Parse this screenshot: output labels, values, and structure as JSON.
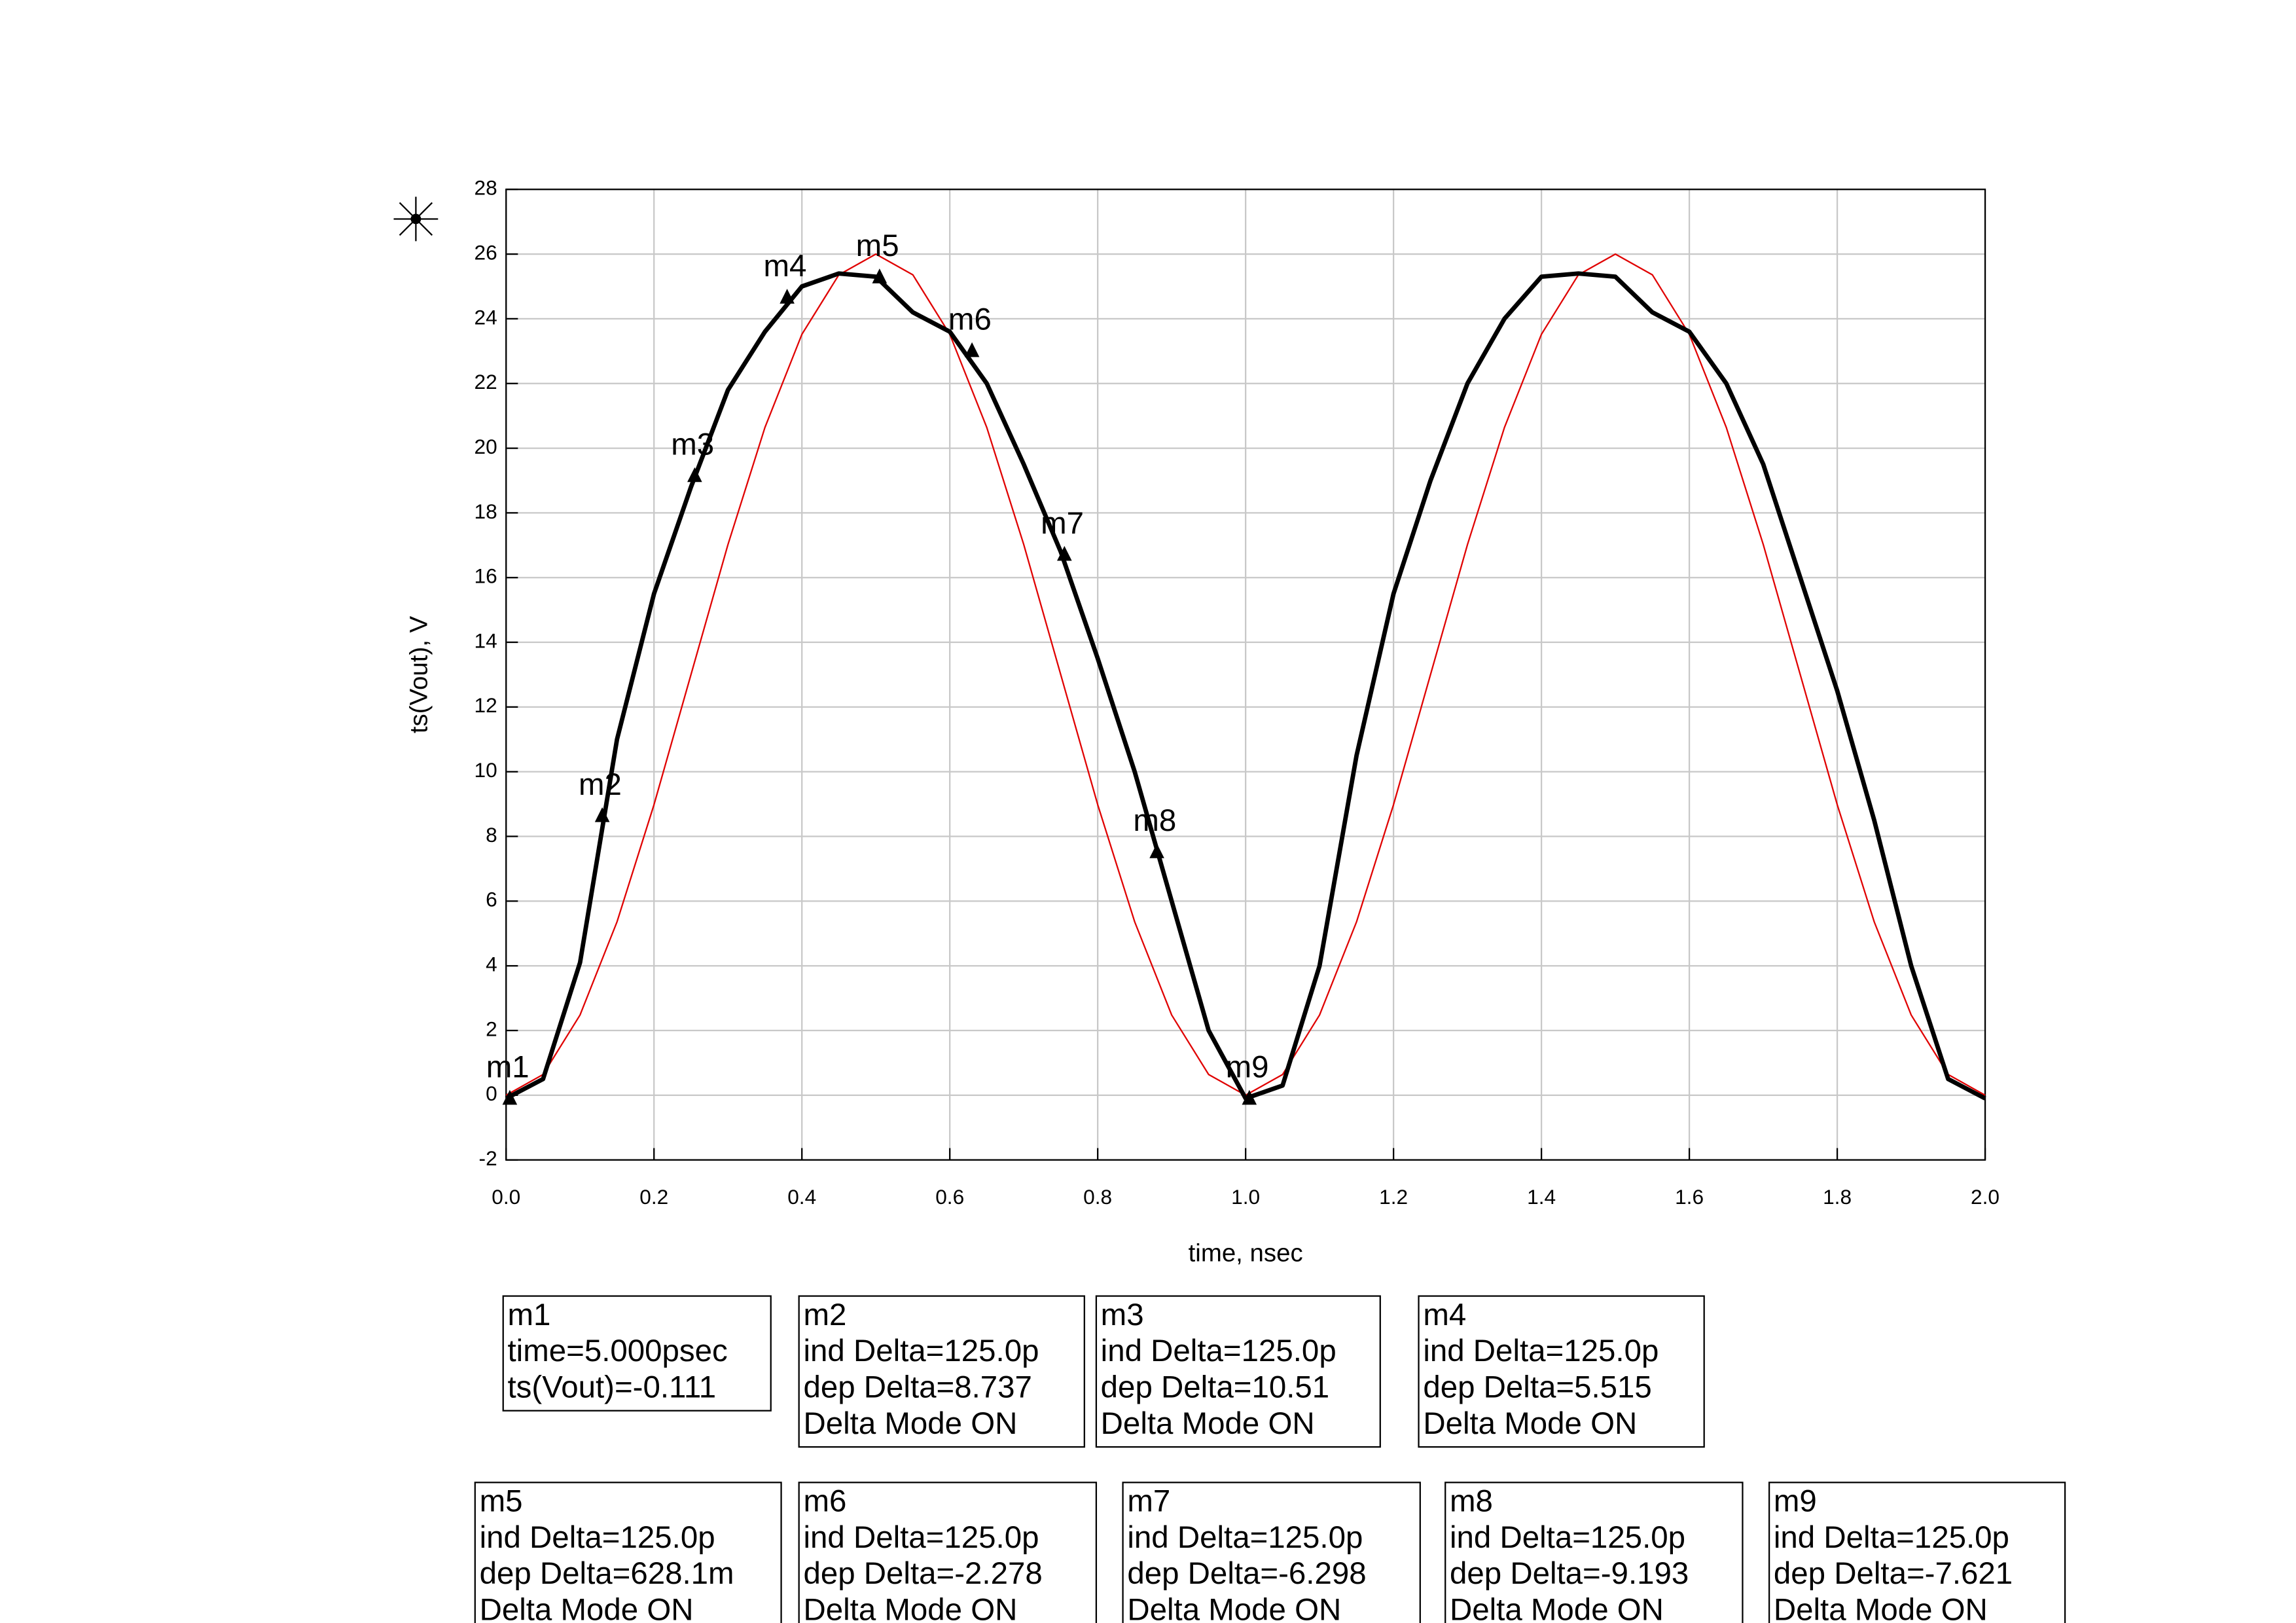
{
  "chart_data": {
    "type": "line",
    "x_label": "time, nsec",
    "y_label": "ts(Vout), V",
    "x": [
      0,
      0.05,
      0.1,
      0.15,
      0.2,
      0.25,
      0.3,
      0.35,
      0.4,
      0.45,
      0.5,
      0.55,
      0.6,
      0.65,
      0.7,
      0.75,
      0.8,
      0.85,
      0.9,
      0.95,
      1.0,
      1.05,
      1.1,
      1.15,
      1.2,
      1.25,
      1.3,
      1.35,
      1.4,
      1.45,
      1.5,
      1.55,
      1.6,
      1.65,
      1.7,
      1.75,
      1.8,
      1.85,
      1.9,
      1.95,
      2.0
    ],
    "series": [
      {
        "color": "#000000",
        "width": 3,
        "values": [
          -0.1,
          0.5,
          4.1,
          11.0,
          15.5,
          18.8,
          21.8,
          23.6,
          25.0,
          25.4,
          25.3,
          24.2,
          23.6,
          22.0,
          19.5,
          16.8,
          13.5,
          10.0,
          6.0,
          2.0,
          -0.1,
          0.3,
          4.0,
          10.5,
          15.5,
          19.0,
          22.0,
          24.0,
          25.3,
          25.4,
          25.3,
          24.2,
          23.6,
          22.0,
          19.5,
          16.0,
          12.5,
          8.5,
          4.0,
          0.5,
          -0.1
        ]
      },
      {
        "color": "#e00000",
        "width": 1,
        "values": [
          0,
          0.64,
          2.48,
          5.36,
          8.98,
          13,
          17.02,
          20.64,
          23.52,
          25.36,
          26,
          25.36,
          23.52,
          20.64,
          17.02,
          13,
          8.98,
          5.36,
          2.48,
          0.64,
          0,
          0.64,
          2.48,
          5.36,
          8.98,
          13,
          17.02,
          20.64,
          23.52,
          25.36,
          26,
          25.36,
          23.52,
          20.64,
          17.02,
          13,
          8.98,
          5.36,
          2.48,
          0.64,
          0
        ]
      }
    ],
    "markers": [
      {
        "name": "m1",
        "x": 0.005,
        "y": -0.111
      },
      {
        "name": "m2",
        "x": 0.13,
        "y": 8.626
      },
      {
        "name": "m3",
        "x": 0.255,
        "y": 19.136
      },
      {
        "name": "m4",
        "x": 0.38,
        "y": 24.651
      },
      {
        "name": "m5",
        "x": 0.505,
        "y": 25.279
      },
      {
        "name": "m6",
        "x": 0.63,
        "y": 23.001
      },
      {
        "name": "m7",
        "x": 0.755,
        "y": 16.703
      },
      {
        "name": "m8",
        "x": 0.88,
        "y": 7.51
      },
      {
        "name": "m9",
        "x": 1.005,
        "y": -0.111
      }
    ],
    "xlim": [
      0,
      2.0
    ],
    "xticks": [
      {
        "value": 0,
        "label": "0.0"
      },
      {
        "value": 0.2,
        "label": "0.2"
      },
      {
        "value": 0.4,
        "label": "0.4"
      },
      {
        "value": 0.6,
        "label": "0.6"
      },
      {
        "value": 0.8,
        "label": "0.8"
      },
      {
        "value": 1,
        "label": "1.0"
      },
      {
        "value": 1.2,
        "label": "1.2"
      },
      {
        "value": 1.4,
        "label": "1.4"
      },
      {
        "value": 1.6,
        "label": "1.6"
      },
      {
        "value": 1.8,
        "label": "1.8"
      },
      {
        "value": 2,
        "label": "2.0"
      }
    ],
    "ylim": [
      -2,
      28
    ],
    "yticks": [
      -2,
      0,
      2,
      4,
      6,
      8,
      10,
      12,
      14,
      16,
      18,
      20,
      22,
      24,
      26,
      28
    ],
    "grid": true
  },
  "readouts": [
    [
      "m1",
      "time=5.000psec",
      "ts(Vout)=-0.111"
    ],
    [
      "m2",
      "ind Delta=125.0p",
      "dep Delta=8.737",
      "Delta Mode ON"
    ],
    [
      "m3",
      "ind Delta=125.0p",
      "dep Delta=10.51",
      "Delta Mode ON"
    ],
    [
      "m4",
      "ind Delta=125.0p",
      "dep Delta=5.515",
      "Delta Mode ON"
    ],
    [
      "m5",
      "ind Delta=125.0p",
      "dep Delta=628.1m",
      "Delta Mode ON"
    ],
    [
      "m6",
      "ind Delta=125.0p",
      "dep Delta=-2.278",
      "Delta Mode ON"
    ],
    [
      "m7",
      "ind Delta=125.0p",
      "dep Delta=-6.298",
      "Delta Mode ON"
    ],
    [
      "m8",
      "ind Delta=125.0p",
      "dep Delta=-9.193",
      "Delta Mode ON"
    ],
    [
      "m9",
      "ind Delta=125.0p",
      "dep Delta=-7.621",
      "Delta Mode ON"
    ]
  ]
}
